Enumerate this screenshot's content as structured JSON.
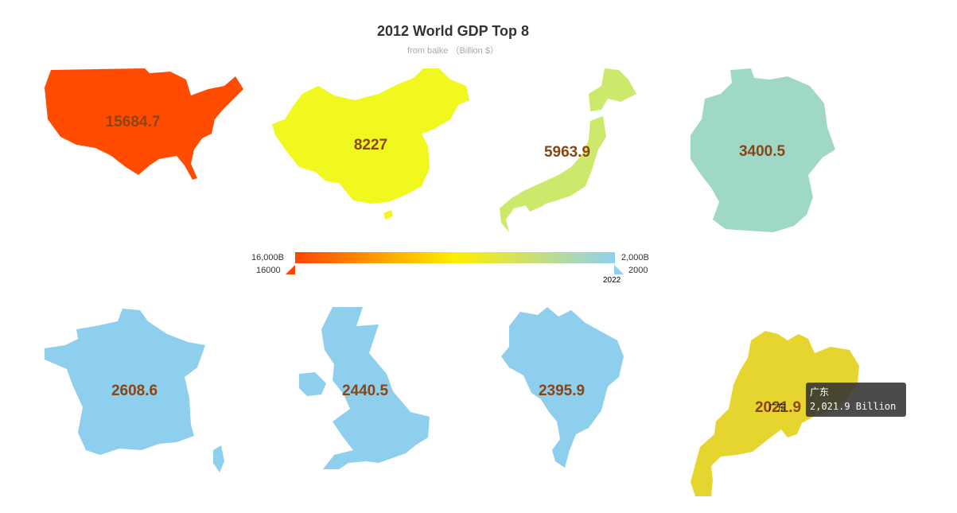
{
  "chart_data": {
    "type": "map",
    "title": "2012 World GDP Top 8",
    "subtitle": "from baike  （Billion $）",
    "unit": "Billion",
    "regions": [
      {
        "name": "United States",
        "value": 15684.7,
        "label": "15684.7",
        "color": "#ff4c00"
      },
      {
        "name": "China",
        "value": 8227,
        "label": "8227",
        "color": "#f0f81e"
      },
      {
        "name": "Japan",
        "value": 5963.9,
        "label": "5963.9",
        "color": "#cde96c"
      },
      {
        "name": "Germany",
        "value": 3400.5,
        "label": "3400.5",
        "color": "#a0d8c8"
      },
      {
        "name": "France",
        "value": 2608.6,
        "label": "2608.6",
        "color": "#8ecfee"
      },
      {
        "name": "United Kingdom",
        "value": 2440.5,
        "label": "2440.5",
        "color": "#8ecfee"
      },
      {
        "name": "Brazil",
        "value": 2395.9,
        "label": "2395.9",
        "color": "#8ecfee"
      },
      {
        "name": "广东",
        "value": 2021.9,
        "label": "2021.9",
        "color": "#e6d52e"
      }
    ],
    "visual_map": {
      "max_label": "16,000B",
      "min_label": "2,000B",
      "handle_max": "16000",
      "handle_min": "2000",
      "handle_min_sub": "2022",
      "colors": [
        "#ff4500",
        "#ffee00",
        "#8fd0f0"
      ]
    },
    "tooltip": {
      "name": "广东",
      "value_text": "2,021.9 Billion",
      "pointer_label": "广东"
    }
  }
}
